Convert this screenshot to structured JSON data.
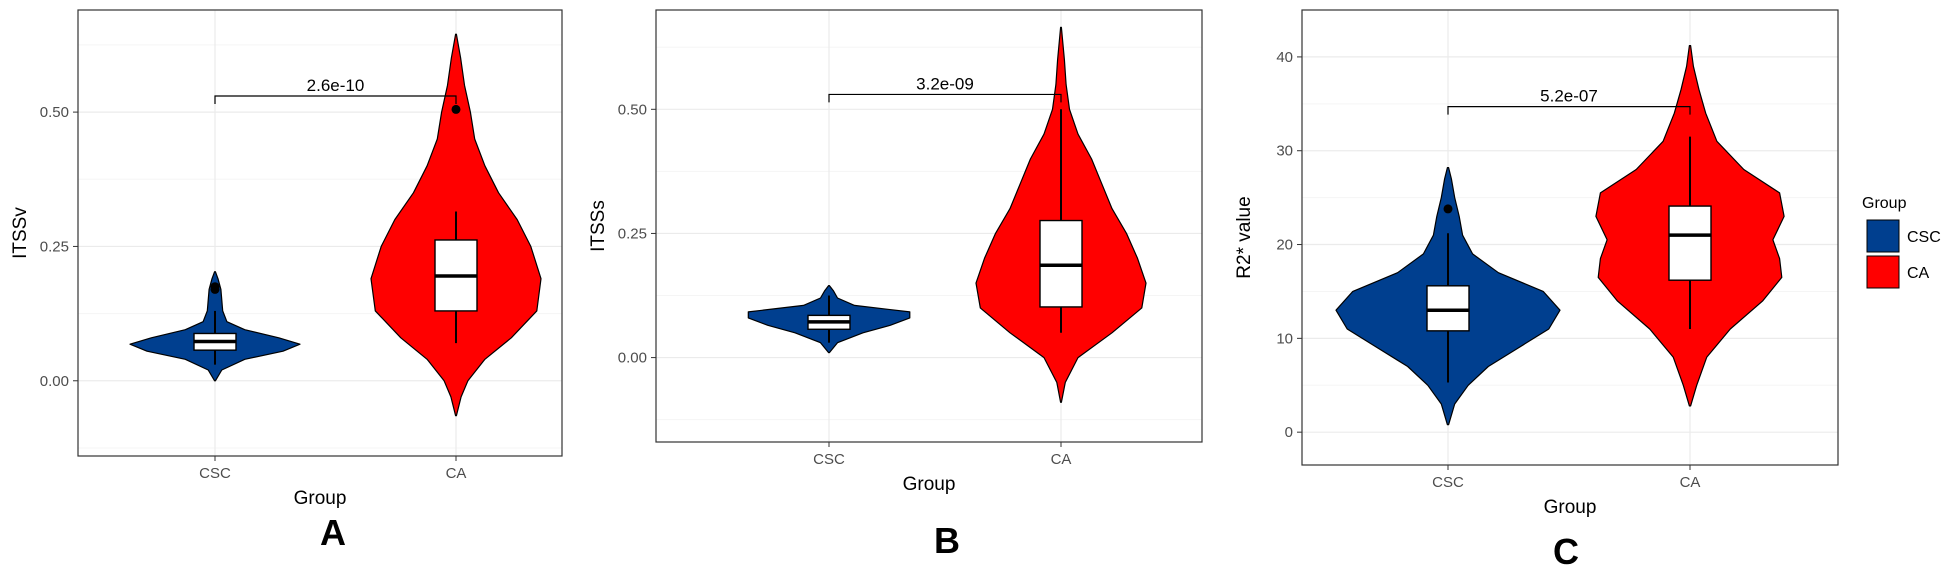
{
  "colors": {
    "CSC": "#003f8f",
    "CA": "#ff0000",
    "panel_border": "#333333",
    "grid_major": "#ebebeb",
    "grid_minor": "#f5f5f5"
  },
  "legend": {
    "title": "Group",
    "entries": [
      "CSC",
      "CA"
    ]
  },
  "chart_data": [
    {
      "type": "violin",
      "panel_letter": "A",
      "xlabel": "Group",
      "ylabel": "ITSSv",
      "categories": [
        "CSC",
        "CA"
      ],
      "ylim": [
        -0.14,
        0.69
      ],
      "yticks": [
        0.0,
        0.25,
        0.5
      ],
      "ytick_labels": [
        "0.00",
        "0.25",
        "0.50"
      ],
      "pvalue": {
        "label": "2.6e-10",
        "y": 0.53
      },
      "groups": [
        {
          "name": "CSC",
          "box": {
            "q1": 0.057,
            "median": 0.073,
            "q3": 0.088,
            "whisker_low": 0.03,
            "whisker_high": 0.13
          },
          "outliers": [
            0.17,
            0.175
          ],
          "violin": [
            [
              0.0,
              0.005
            ],
            [
              0.02,
              0.08
            ],
            [
              0.04,
              0.35
            ],
            [
              0.055,
              0.8
            ],
            [
              0.068,
              1.0
            ],
            [
              0.08,
              0.75
            ],
            [
              0.095,
              0.35
            ],
            [
              0.11,
              0.14
            ],
            [
              0.13,
              0.09
            ],
            [
              0.15,
              0.08
            ],
            [
              0.17,
              0.07
            ],
            [
              0.19,
              0.035
            ],
            [
              0.203,
              0.005
            ]
          ]
        },
        {
          "name": "CA",
          "box": {
            "q1": 0.13,
            "median": 0.195,
            "q3": 0.262,
            "whisker_low": 0.07,
            "whisker_high": 0.315
          },
          "outliers": [
            0.505
          ],
          "violin": [
            [
              -0.065,
              0.005
            ],
            [
              -0.03,
              0.06
            ],
            [
              0.0,
              0.14
            ],
            [
              0.04,
              0.34
            ],
            [
              0.08,
              0.65
            ],
            [
              0.13,
              0.95
            ],
            [
              0.19,
              1.0
            ],
            [
              0.25,
              0.88
            ],
            [
              0.3,
              0.72
            ],
            [
              0.35,
              0.5
            ],
            [
              0.4,
              0.34
            ],
            [
              0.45,
              0.22
            ],
            [
              0.5,
              0.17
            ],
            [
              0.55,
              0.1
            ],
            [
              0.6,
              0.055
            ],
            [
              0.645,
              0.005
            ]
          ]
        }
      ]
    },
    {
      "type": "violin",
      "panel_letter": "B",
      "xlabel": "Group",
      "ylabel": "ITSSs",
      "categories": [
        "CSC",
        "CA"
      ],
      "ylim": [
        -0.17,
        0.7
      ],
      "yticks": [
        0.0,
        0.25,
        0.5
      ],
      "ytick_labels": [
        "0.00",
        "0.25",
        "0.50"
      ],
      "pvalue": {
        "label": "3.2e-09",
        "y": 0.53
      },
      "groups": [
        {
          "name": "CSC",
          "box": {
            "q1": 0.057,
            "median": 0.072,
            "q3": 0.085,
            "whisker_low": 0.03,
            "whisker_high": 0.125
          },
          "outliers": [],
          "violin": [
            [
              0.01,
              0.005
            ],
            [
              0.03,
              0.1
            ],
            [
              0.05,
              0.4
            ],
            [
              0.065,
              0.72
            ],
            [
              0.08,
              0.95
            ],
            [
              0.092,
              0.95
            ],
            [
              0.105,
              0.3
            ],
            [
              0.12,
              0.1
            ],
            [
              0.135,
              0.05
            ],
            [
              0.145,
              0.005
            ]
          ]
        },
        {
          "name": "CA",
          "box": {
            "q1": 0.102,
            "median": 0.186,
            "q3": 0.276,
            "whisker_low": 0.05,
            "whisker_high": 0.5
          },
          "outliers": [],
          "violin": [
            [
              -0.09,
              0.005
            ],
            [
              -0.05,
              0.05
            ],
            [
              0.0,
              0.2
            ],
            [
              0.05,
              0.6
            ],
            [
              0.1,
              0.95
            ],
            [
              0.15,
              1.0
            ],
            [
              0.2,
              0.9
            ],
            [
              0.25,
              0.77
            ],
            [
              0.3,
              0.6
            ],
            [
              0.35,
              0.48
            ],
            [
              0.4,
              0.36
            ],
            [
              0.45,
              0.2
            ],
            [
              0.5,
              0.1
            ],
            [
              0.55,
              0.06
            ],
            [
              0.6,
              0.04
            ],
            [
              0.665,
              0.005
            ]
          ]
        }
      ]
    },
    {
      "type": "violin",
      "panel_letter": "C",
      "xlabel": "Group",
      "ylabel": "R2* value",
      "categories": [
        "CSC",
        "CA"
      ],
      "ylim": [
        -3.5,
        45
      ],
      "yticks": [
        0,
        10,
        20,
        30,
        40
      ],
      "ytick_labels": [
        "0",
        "10",
        "20",
        "30",
        "40"
      ],
      "pvalue": {
        "label": "5.2e-07",
        "y": 34.7
      },
      "groups": [
        {
          "name": "CSC",
          "box": {
            "q1": 10.8,
            "median": 13.0,
            "q3": 15.6,
            "whisker_low": 5.3,
            "whisker_high": 21.2
          },
          "outliers": [
            23.8
          ],
          "violin": [
            [
              0.8,
              0.005
            ],
            [
              3.0,
              0.06
            ],
            [
              5.0,
              0.18
            ],
            [
              7.0,
              0.36
            ],
            [
              9.0,
              0.63
            ],
            [
              11.0,
              0.9
            ],
            [
              13.0,
              1.0
            ],
            [
              15.0,
              0.85
            ],
            [
              17.0,
              0.45
            ],
            [
              19.0,
              0.22
            ],
            [
              21.0,
              0.13
            ],
            [
              23.0,
              0.1
            ],
            [
              25.0,
              0.06
            ],
            [
              27.0,
              0.03
            ],
            [
              28.2,
              0.005
            ]
          ]
        },
        {
          "name": "CA",
          "box": {
            "q1": 16.2,
            "median": 21.0,
            "q3": 24.1,
            "whisker_low": 11.0,
            "whisker_high": 31.5
          },
          "outliers": [],
          "violin": [
            [
              2.8,
              0.005
            ],
            [
              5.0,
              0.06
            ],
            [
              8.0,
              0.15
            ],
            [
              11.0,
              0.36
            ],
            [
              14.0,
              0.65
            ],
            [
              16.5,
              0.82
            ],
            [
              18.5,
              0.8
            ],
            [
              20.5,
              0.74
            ],
            [
              23.0,
              0.84
            ],
            [
              25.5,
              0.8
            ],
            [
              28.0,
              0.48
            ],
            [
              31.0,
              0.24
            ],
            [
              34.0,
              0.14
            ],
            [
              36.5,
              0.08
            ],
            [
              39.0,
              0.03
            ],
            [
              41.2,
              0.005
            ]
          ]
        }
      ]
    }
  ]
}
